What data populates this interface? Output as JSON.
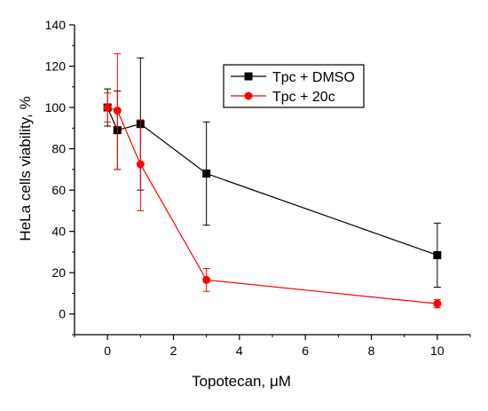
{
  "chart_data": {
    "type": "line",
    "title": "",
    "xlabel": "Topotecan, μM",
    "ylabel": "HeLa cells viability, %",
    "xlim": [
      -1,
      11
    ],
    "ylim": [
      -10,
      140
    ],
    "x_ticks": [
      0,
      2,
      4,
      6,
      8,
      10
    ],
    "y_ticks": [
      0,
      20,
      40,
      60,
      80,
      100,
      120,
      140
    ],
    "grid": false,
    "legend_position": "top-right",
    "series": [
      {
        "name": "Tpc + DMSO",
        "color": "#000000",
        "marker": "square",
        "x": [
          0,
          0.3,
          1,
          3,
          10
        ],
        "y": [
          100,
          89,
          92,
          68,
          28.5
        ],
        "error_low": [
          91,
          70,
          60,
          43,
          13
        ],
        "error_high": [
          109,
          108,
          124,
          93,
          44
        ]
      },
      {
        "name": "Tpc + 20c",
        "color": "#ff0000",
        "marker": "circle",
        "x": [
          0,
          0.3,
          1,
          3,
          10
        ],
        "y": [
          100,
          98.5,
          72.5,
          16.5,
          5
        ],
        "error_low": [
          93,
          70,
          50,
          11,
          3
        ],
        "error_high": [
          107,
          126,
          94,
          22,
          7
        ]
      }
    ]
  }
}
